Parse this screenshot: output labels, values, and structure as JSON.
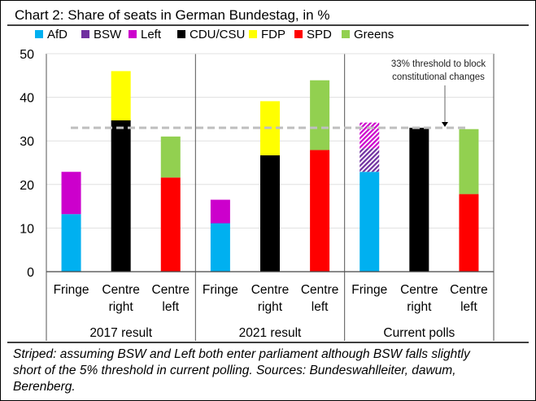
{
  "chart_data": {
    "type": "bar",
    "stacked": true,
    "title": "Chart 2: Share of seats in German Bundestag, in %",
    "ylim": [
      0,
      50
    ],
    "yticks": [
      0,
      10,
      20,
      30,
      40,
      50
    ],
    "grid": true,
    "legend_placement": "top",
    "legend": [
      {
        "name": "AfD",
        "color": "#00B0F0"
      },
      {
        "name": "BSW",
        "color": "#7030A0"
      },
      {
        "name": "Left",
        "color": "#CC00CC"
      },
      {
        "name": "CDU/CSU",
        "color": "#000000"
      },
      {
        "name": "FDP",
        "color": "#FFFF00"
      },
      {
        "name": "SPD",
        "color": "#FF0000"
      },
      {
        "name": "Greens",
        "color": "#92D050"
      }
    ],
    "groups": [
      {
        "label": "2017 result",
        "bars": [
          {
            "label": [
              "Fringe"
            ],
            "segments": [
              {
                "party": "AfD",
                "value": 13.2
              },
              {
                "party": "Left",
                "value": 9.7
              }
            ]
          },
          {
            "label": [
              "Centre",
              "right"
            ],
            "segments": [
              {
                "party": "CDU/CSU",
                "value": 34.7
              },
              {
                "party": "FDP",
                "value": 11.3
              }
            ]
          },
          {
            "label": [
              "Centre",
              "left"
            ],
            "segments": [
              {
                "party": "SPD",
                "value": 21.6
              },
              {
                "party": "Greens",
                "value": 9.4
              }
            ]
          }
        ]
      },
      {
        "label": "2021 result",
        "bars": [
          {
            "label": [
              "Fringe"
            ],
            "segments": [
              {
                "party": "AfD",
                "value": 11.1
              },
              {
                "party": "Left",
                "value": 5.4
              }
            ]
          },
          {
            "label": [
              "Centre",
              "right"
            ],
            "segments": [
              {
                "party": "CDU/CSU",
                "value": 26.7
              },
              {
                "party": "FDP",
                "value": 12.4
              }
            ]
          },
          {
            "label": [
              "Centre",
              "left"
            ],
            "segments": [
              {
                "party": "SPD",
                "value": 27.9
              },
              {
                "party": "Greens",
                "value": 16.0
              }
            ]
          }
        ]
      },
      {
        "label": "Current polls",
        "bars": [
          {
            "label": [
              "Fringe"
            ],
            "segments": [
              {
                "party": "AfD",
                "value": 22.9
              },
              {
                "party": "BSW",
                "value": 5.4,
                "striped": true
              },
              {
                "party": "Left",
                "value": 5.9,
                "striped": true
              }
            ]
          },
          {
            "label": [
              "Centre",
              "right"
            ],
            "segments": [
              {
                "party": "CDU/CSU",
                "value": 33.0
              }
            ]
          },
          {
            "label": [
              "Centre",
              "left"
            ],
            "segments": [
              {
                "party": "SPD",
                "value": 17.8
              },
              {
                "party": "Greens",
                "value": 14.9
              }
            ]
          }
        ]
      }
    ],
    "threshold": {
      "value": 33,
      "label": [
        "33% threshold to block",
        "constitutional changes"
      ]
    },
    "footnote": [
      "Striped: assuming BSW and Left both enter parliament although BSW falls slightly",
      "short of the 5% threshold in current polling. Sources: Bundeswahlleiter, dawum,",
      "Berenberg."
    ]
  }
}
